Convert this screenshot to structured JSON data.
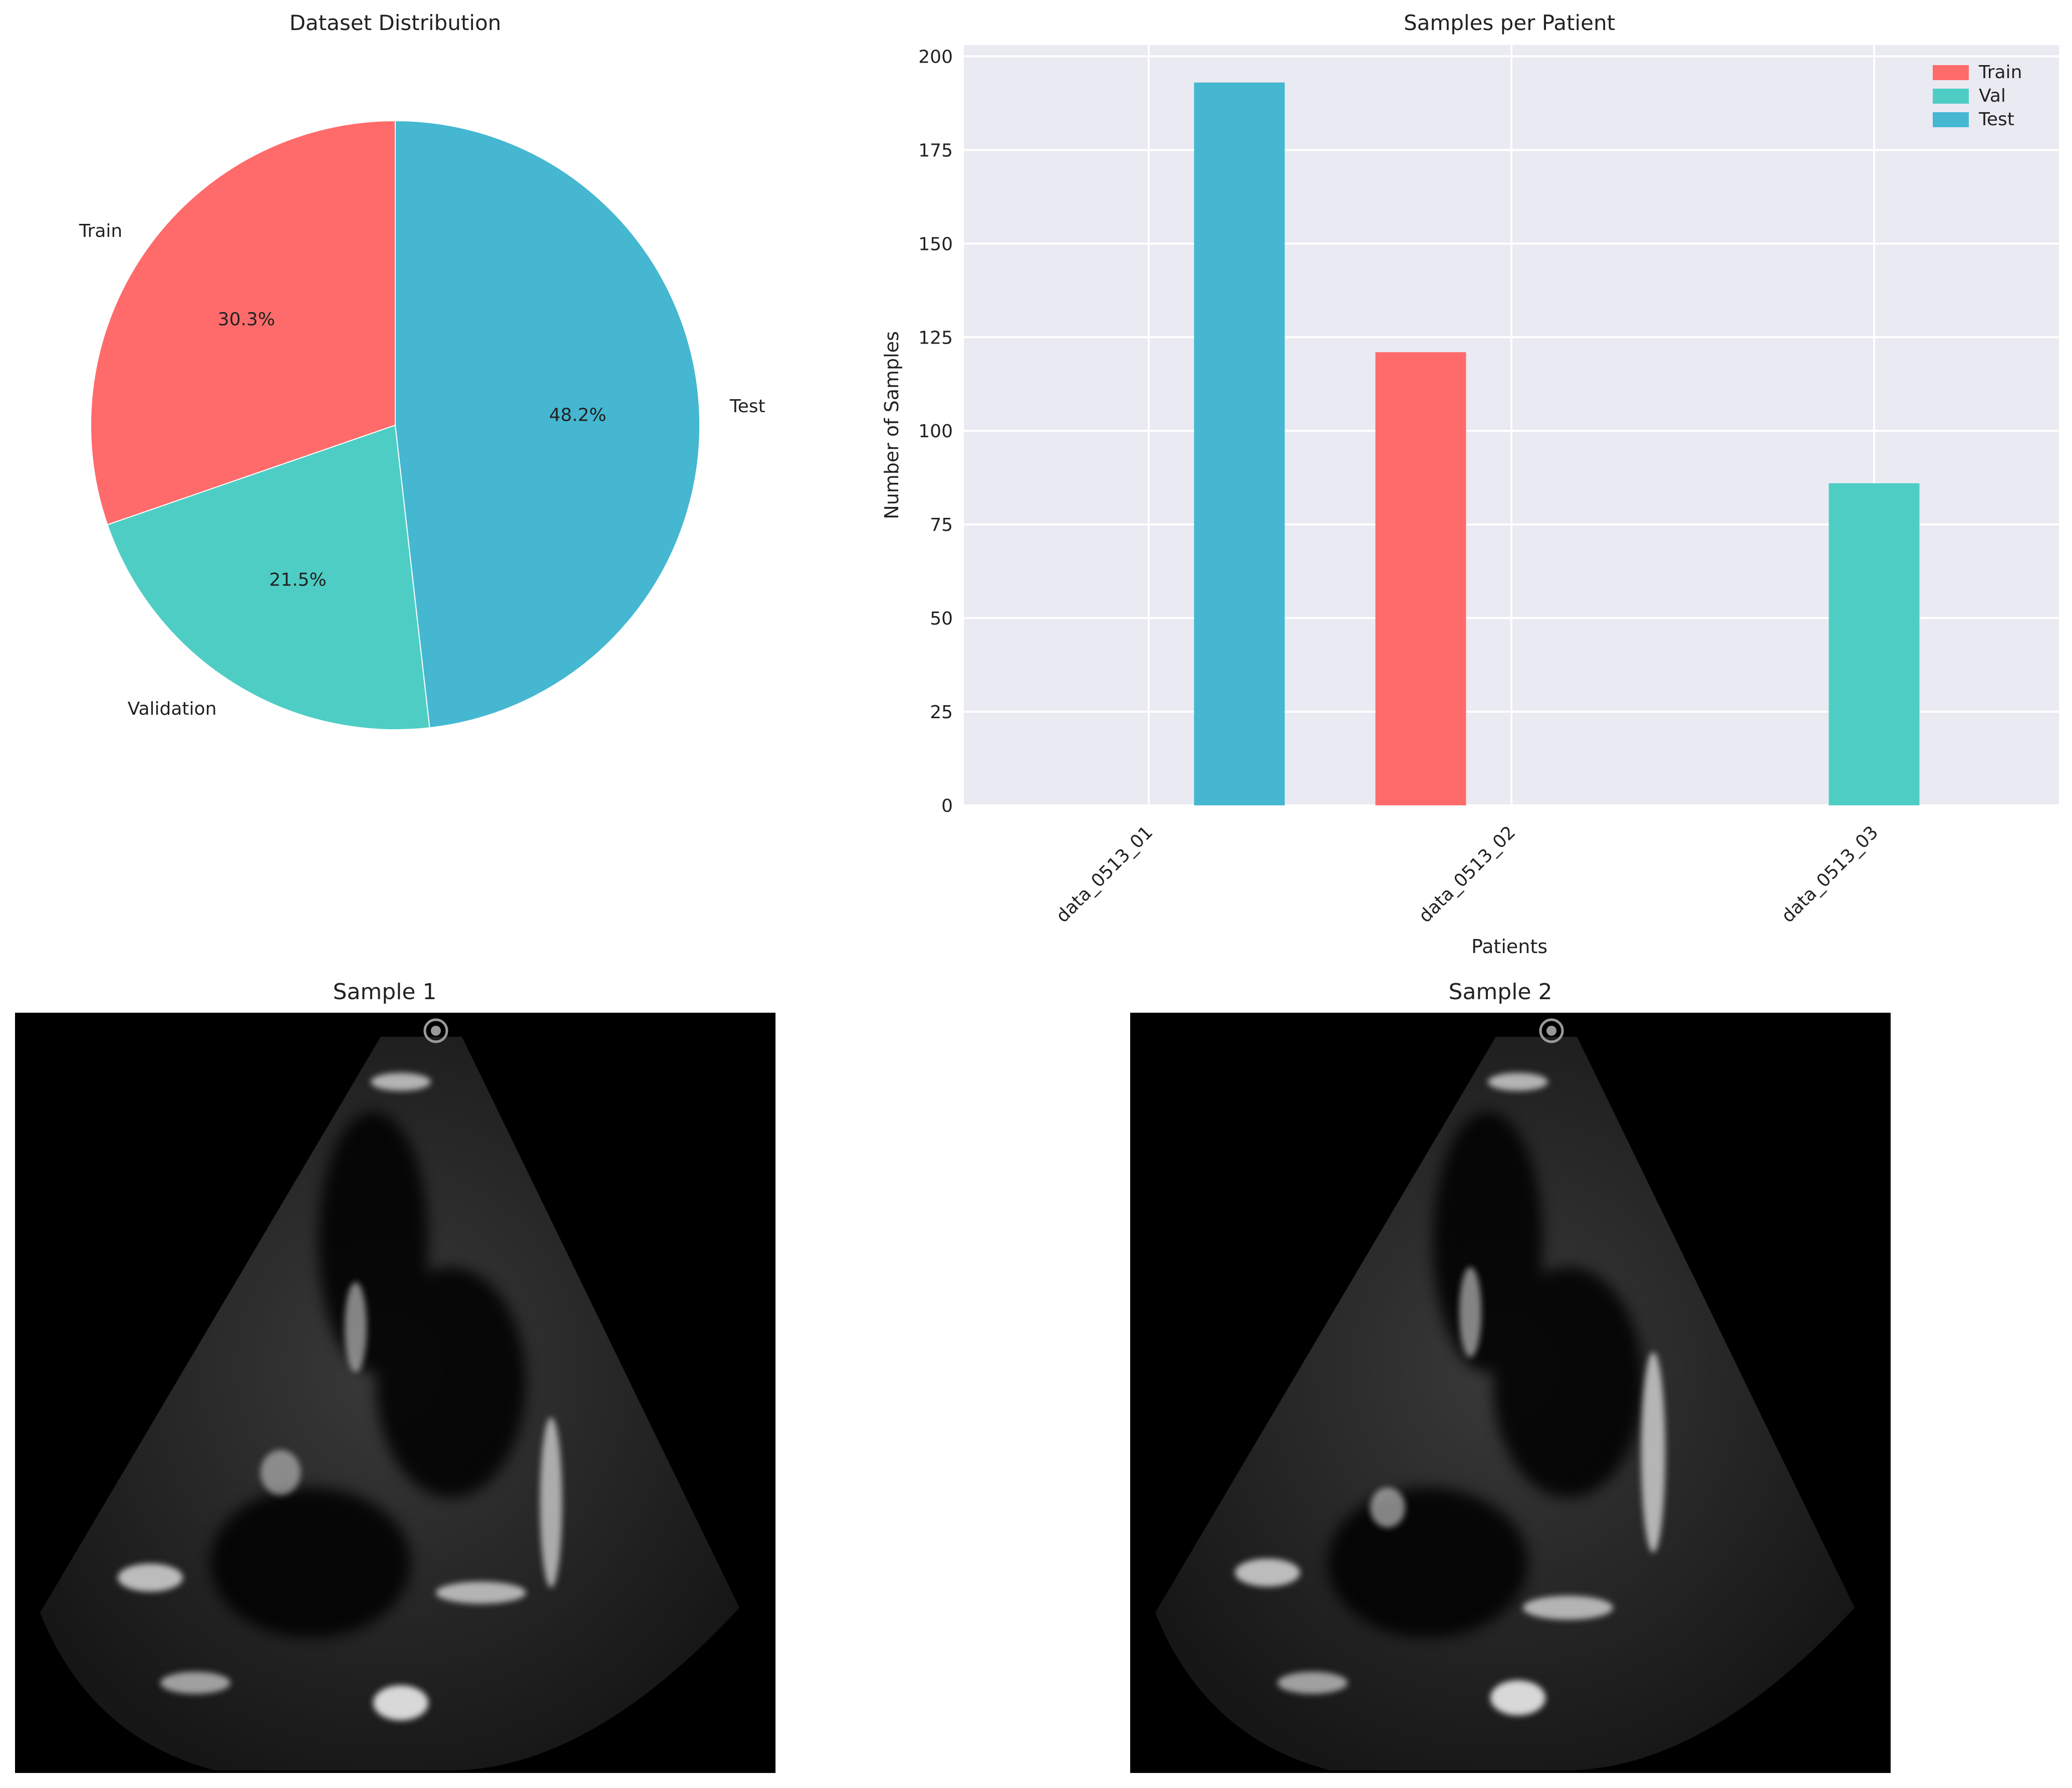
{
  "chart_data": [
    {
      "type": "pie",
      "title": "Dataset Distribution",
      "labels": [
        "Train",
        "Validation",
        "Test"
      ],
      "values": [
        30.3,
        21.5,
        48.2
      ],
      "value_labels": [
        "30.3%",
        "21.5%",
        "48.2%"
      ],
      "colors": [
        "#FF6B6B",
        "#4ECDC4",
        "#45B7D1"
      ],
      "start_angle_deg": 90,
      "direction": "counterclockwise"
    },
    {
      "type": "bar",
      "title": "Samples per Patient",
      "xlabel": "Patients",
      "ylabel": "Number of Samples",
      "categories": [
        "data_0513_01",
        "data_0513_02",
        "data_0513_03"
      ],
      "series": [
        {
          "name": "Train",
          "color": "#FF6B6B",
          "values": [
            0,
            121,
            0
          ]
        },
        {
          "name": "Val",
          "color": "#4ECDC4",
          "values": [
            0,
            0,
            86
          ]
        },
        {
          "name": "Test",
          "color": "#45B7D1",
          "values": [
            193,
            0,
            0
          ]
        }
      ],
      "ylim": [
        0,
        203
      ],
      "yticks": [
        0,
        25,
        50,
        75,
        100,
        125,
        150,
        175,
        200
      ],
      "grid": true,
      "legend": "top-right",
      "xtick_rotation_deg": -45
    }
  ],
  "images": [
    {
      "title": "Sample 1",
      "kind": "grayscale echocardiogram apical view"
    },
    {
      "title": "Sample 2",
      "kind": "grayscale echocardiogram apical view"
    }
  ]
}
